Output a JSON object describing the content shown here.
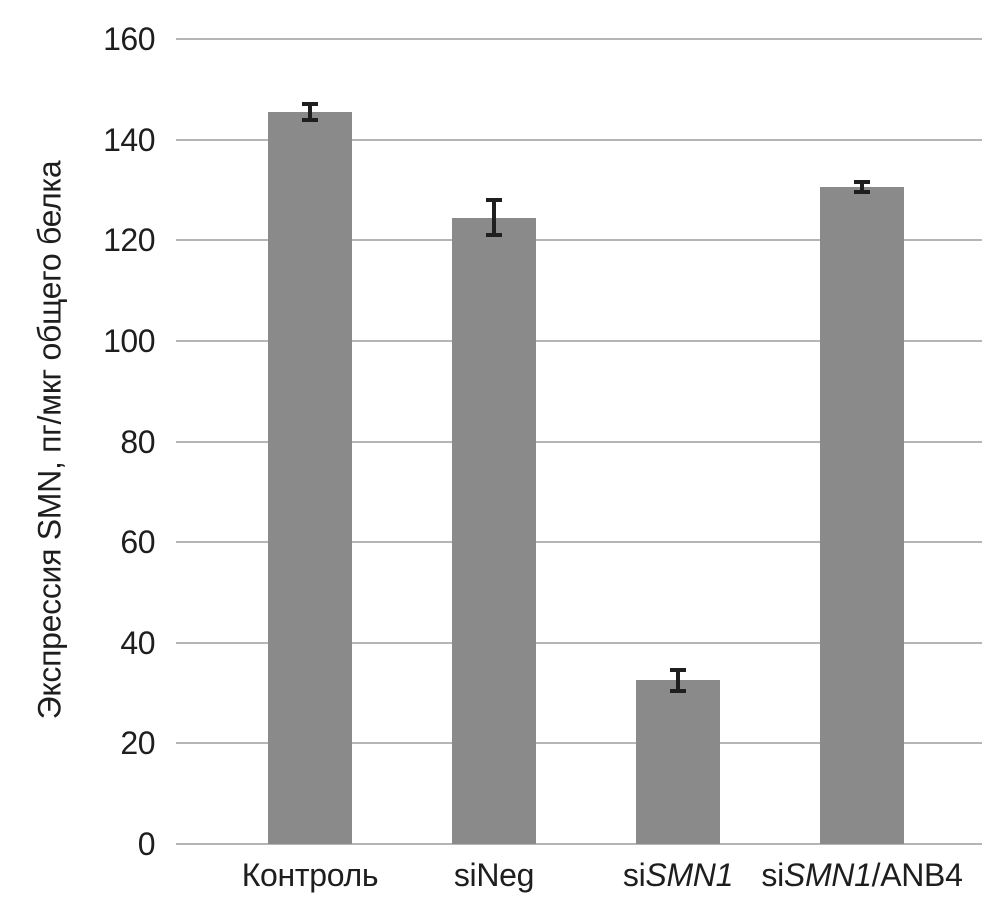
{
  "chart_data": {
    "type": "bar",
    "title": "",
    "xlabel": "",
    "ylabel": "Экспрессия SMN, пг/мкг общего белка",
    "ylim": [
      0,
      160
    ],
    "ytick_step": 20,
    "grid": true,
    "legend": false,
    "categories": [
      "Контроль",
      "siNeg",
      "siSMN1",
      "siSMN1/ANB4"
    ],
    "category_parts": [
      [
        {
          "text": "Контроль",
          "italic": false
        }
      ],
      [
        {
          "text": "siNeg",
          "italic": false
        }
      ],
      [
        {
          "text": "si",
          "italic": false
        },
        {
          "text": "SMN1",
          "italic": true
        }
      ],
      [
        {
          "text": "si",
          "italic": false
        },
        {
          "text": "SMN1",
          "italic": true
        },
        {
          "text": "/ANB4",
          "italic": false
        }
      ]
    ],
    "values": [
      145.5,
      124.5,
      32.5,
      130.5
    ],
    "errors": [
      1.5,
      3.5,
      2.0,
      1.0
    ],
    "bar_color": "#8a8a8a",
    "error_bar_color": "#1f1f1f",
    "gridline_color": "#b5b5b5",
    "text_color": "#1e1e1e",
    "background_color": "#ffffff"
  }
}
